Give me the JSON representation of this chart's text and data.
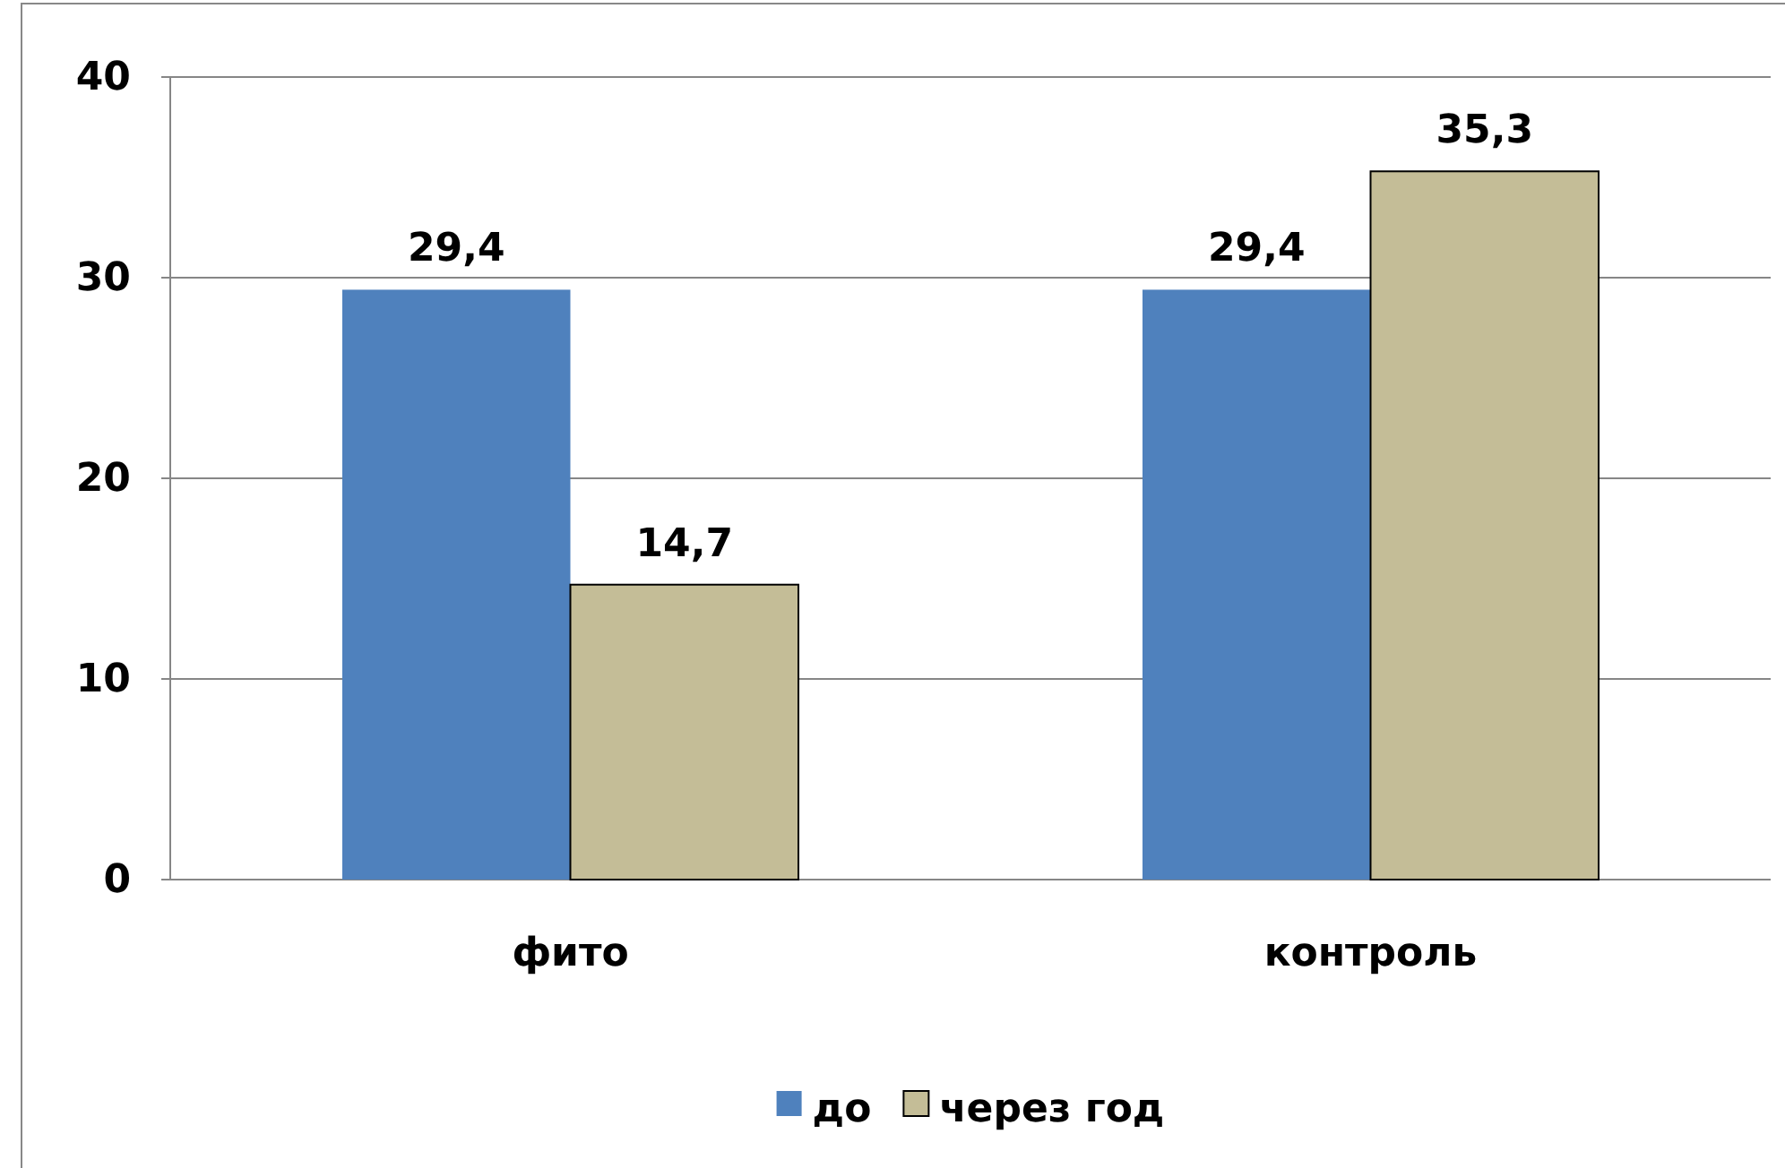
{
  "chart_data": {
    "type": "bar",
    "categories": [
      "фито",
      "контроль"
    ],
    "series": [
      {
        "name": "до",
        "color": "#4f81bd",
        "values": [
          29.4,
          29.4
        ],
        "value_labels": [
          "29,4",
          "29,4"
        ]
      },
      {
        "name": "через год",
        "color": "#c4bd97",
        "values": [
          14.7,
          35.3
        ],
        "value_labels": [
          "14,7",
          "35,3"
        ]
      }
    ],
    "ylim": [
      0,
      40
    ],
    "yticks": [
      0,
      10,
      20,
      30,
      40
    ],
    "grid": "y",
    "legend": "bottom"
  }
}
